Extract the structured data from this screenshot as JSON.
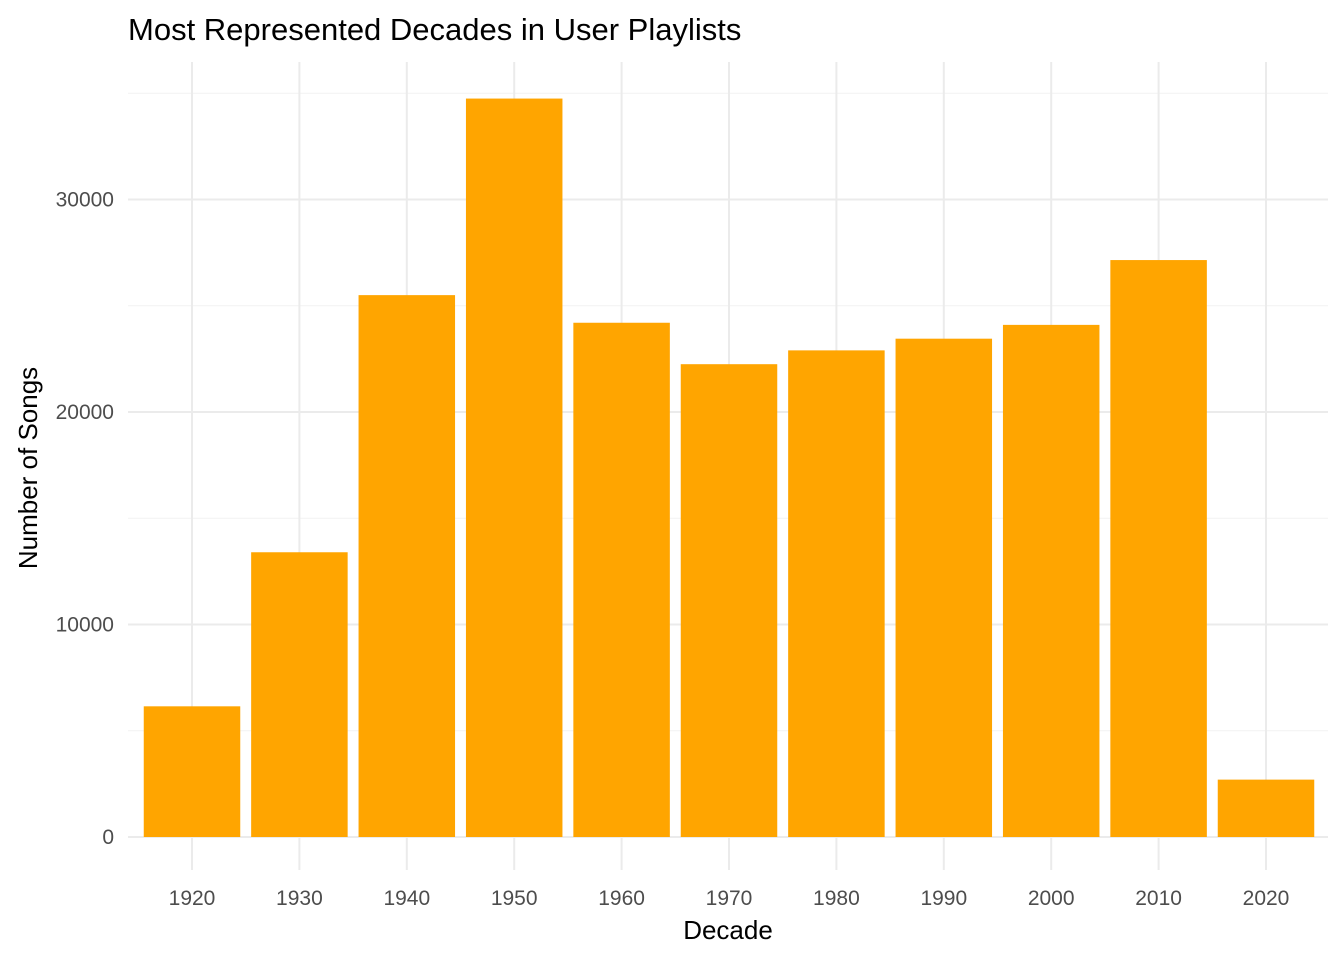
{
  "chart_data": {
    "type": "bar",
    "title": "Most Represented Decades in User Playlists",
    "xlabel": "Decade",
    "ylabel": "Number of Songs",
    "categories": [
      "1920",
      "1930",
      "1940",
      "1950",
      "1960",
      "1970",
      "1980",
      "1990",
      "2000",
      "2010",
      "2020"
    ],
    "values": [
      6150,
      13400,
      25500,
      34750,
      24200,
      22250,
      22900,
      23450,
      24100,
      27150,
      2700
    ],
    "ylim": [
      0,
      35000
    ],
    "yticks": [
      "0",
      "10000",
      "20000",
      "30000"
    ],
    "bar_color": "#FFA500",
    "grid": true,
    "legend": "none"
  }
}
